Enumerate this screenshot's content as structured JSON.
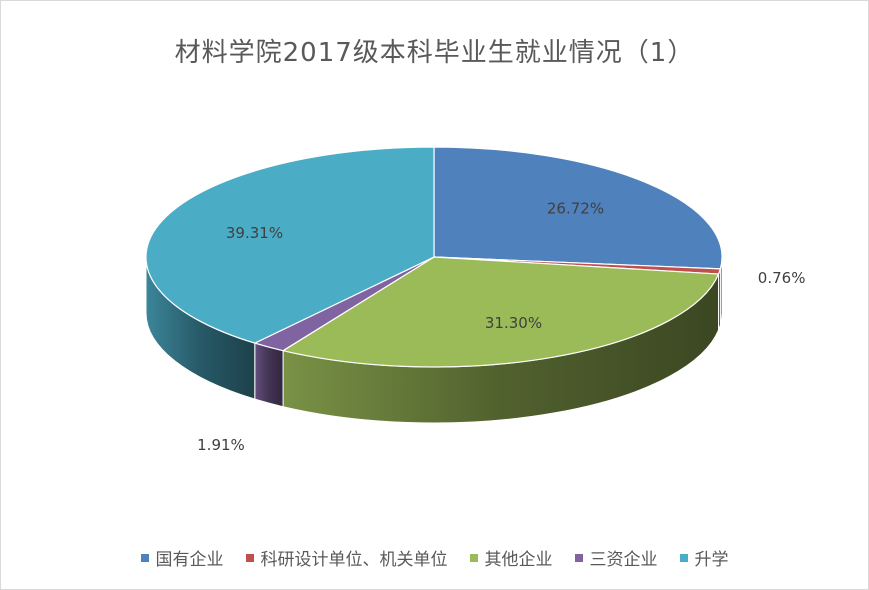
{
  "chart_data": {
    "type": "pie",
    "title": "材料学院2017级本科毕业生就业情况（1）",
    "categories": [
      "国有企业",
      "科研设计单位、机关单位",
      "其他企业",
      "三资企业",
      "升学"
    ],
    "values": [
      26.72,
      0.76,
      31.3,
      1.91,
      39.31
    ],
    "labels": [
      "26.72%",
      "0.76%",
      "31.30%",
      "1.91%",
      "39.31%"
    ],
    "colors": [
      "#4F81BD",
      "#C0504D",
      "#9BBB59",
      "#8064A2",
      "#4BACC6"
    ],
    "legend_position": "bottom"
  }
}
